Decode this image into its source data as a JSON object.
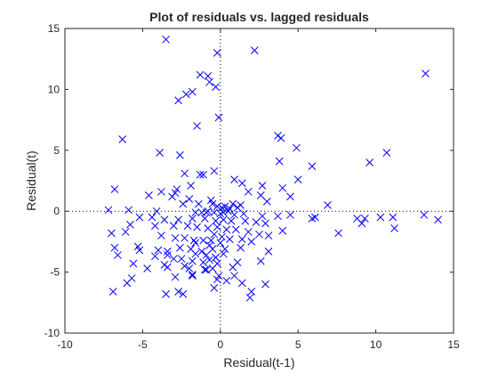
{
  "chart_data": {
    "type": "scatter",
    "title": "Plot of residuals vs. lagged residuals",
    "xlabel": "Residual(t-1)",
    "ylabel": "Residual(t)",
    "xlim": [
      -10,
      15
    ],
    "ylim": [
      -10,
      15
    ],
    "xticks": [
      "-10",
      "-5",
      "0",
      "5",
      "10",
      "15"
    ],
    "yticks": [
      "-10",
      "-5",
      "0",
      "5",
      "10",
      "15"
    ],
    "grid": false,
    "reference_lines": [
      "x = 0",
      "y = 0"
    ],
    "marker": "x",
    "marker_color": "#0000ff",
    "series": [
      {
        "x": [
          -3.5,
          -0.2,
          2.2,
          13.2,
          -1.3,
          -0.8,
          -1.8,
          -2.2,
          -2.7,
          -0.3,
          -0.7,
          -1.5,
          -6.3,
          3.7,
          3.9,
          4.9,
          -2.6,
          -0.1,
          9.6,
          10.7,
          -3.9,
          3.8,
          5.9,
          -1.3,
          -1.1,
          -2.3,
          -0.4,
          -1.9,
          -2.8,
          -3.8,
          -2.9,
          1.4,
          2.7,
          4.5,
          5.0,
          0.9,
          1.8,
          -6.8,
          4.0,
          2.6,
          -4.6,
          -3.1,
          -2.0,
          -0.6,
          3.0,
          -2.4,
          -1.4,
          -0.5,
          -0.2,
          0.1,
          0.3,
          0.6,
          0.8,
          1.1,
          1.3,
          -0.8,
          -7.2,
          -5.9,
          -4.1,
          -1.6,
          -1.2,
          -0.9,
          -0.4,
          0.0,
          0.2,
          0.5,
          0.9,
          1.5,
          2.7,
          3.7,
          4.5,
          6.1,
          6.9,
          8.8,
          9.3,
          10.3,
          11.1,
          13.1,
          14.0,
          -5.2,
          -4.4,
          -3.6,
          -2.7,
          -1.8,
          -1.0,
          -0.3,
          0.2,
          0.7,
          1.6,
          2.3,
          2.9,
          5.9,
          7.6,
          9.1,
          -7.0,
          -5.8,
          -4.2,
          -3.0,
          -2.1,
          -1.5,
          -0.8,
          -0.2,
          0.4,
          1.0,
          1.8,
          2.5,
          3.1,
          4.0,
          11.2,
          -6.1,
          -3.8,
          -2.9,
          -2.3,
          -1.7,
          -1.1,
          -0.6,
          0.1,
          0.6,
          1.4,
          2.0,
          -6.8,
          -5.2,
          -4.0,
          -3.4,
          -2.6,
          -1.9,
          -1.2,
          -0.5,
          0.3,
          1.3,
          3.1,
          -5.3,
          -3.4,
          -2.5,
          -1.6,
          -0.9,
          -0.3,
          -6.6,
          -4.2,
          -3.0,
          -1.8,
          -0.7,
          1.1,
          2.6,
          -5.6,
          -3.6,
          -2.3,
          -1.1,
          -0.2,
          -4.7,
          -3.4,
          -2.0,
          -0.5,
          0.8,
          -5.7,
          -2.9,
          -1.8,
          -0.1,
          0.9,
          -6.0,
          -3.5,
          -2.7,
          -0.4,
          2.0,
          2.9,
          -6.9,
          -1.8,
          -0.2,
          0.4,
          1.4,
          -0.9,
          -0.3,
          0.2,
          -0.7,
          -1.6,
          0.0,
          -0.4,
          1.9,
          -2.4,
          -1.0
        ],
        "y": [
          14.1,
          13.0,
          13.2,
          11.3,
          11.2,
          11.1,
          9.8,
          9.6,
          9.1,
          10.2,
          10.6,
          7.0,
          5.9,
          6.2,
          6.0,
          5.2,
          4.6,
          7.7,
          4.0,
          4.8,
          4.8,
          4.1,
          3.7,
          3.0,
          3.0,
          3.1,
          3.3,
          2.1,
          1.8,
          1.6,
          1.5,
          2.3,
          2.1,
          1.2,
          2.6,
          2.6,
          1.6,
          1.8,
          1.9,
          1.3,
          1.3,
          1.2,
          1.0,
          0.9,
          0.8,
          0.6,
          0.6,
          0.6,
          0.4,
          0.3,
          0.4,
          0.2,
          0.6,
          0.3,
          0.5,
          0.0,
          0.1,
          0.1,
          0.0,
          -0.1,
          -0.1,
          -0.1,
          -0.1,
          -0.2,
          -0.1,
          0.0,
          -0.3,
          -0.2,
          -0.4,
          -0.4,
          -0.3,
          -0.5,
          0.5,
          -0.6,
          -0.6,
          -0.5,
          -0.5,
          -0.3,
          -0.7,
          -0.5,
          -0.5,
          -0.7,
          -0.7,
          -0.6,
          -0.6,
          -0.8,
          -0.7,
          -0.8,
          -0.8,
          -0.9,
          -1.0,
          -0.6,
          -1.8,
          -1.0,
          -1.8,
          -1.1,
          -1.2,
          -1.2,
          -1.2,
          -1.3,
          -1.4,
          -1.3,
          -1.5,
          -1.5,
          -1.7,
          -1.9,
          -2.0,
          -1.6,
          -1.4,
          -1.7,
          -2.0,
          -2.2,
          -2.2,
          -2.4,
          -2.4,
          -2.4,
          -2.1,
          -2.3,
          -2.3,
          -2.5,
          -3.0,
          -3.2,
          -3.2,
          -3.3,
          -3.0,
          -3.1,
          -3.3,
          -3.1,
          -3.1,
          -3.0,
          -3.3,
          -2.9,
          -3.6,
          -3.9,
          -3.5,
          -3.6,
          -3.8,
          -3.6,
          -3.7,
          -3.9,
          -4.1,
          -4.0,
          -4.2,
          -4.1,
          -4.3,
          -4.4,
          -4.5,
          -4.2,
          -4.3,
          -4.7,
          -4.6,
          -4.7,
          -4.7,
          -4.6,
          -5.5,
          -5.4,
          -5.2,
          -5.3,
          -5.3,
          -5.9,
          -6.8,
          -6.6,
          -6.3,
          -6.6,
          -6.0,
          -6.6,
          -5.3,
          -5.6,
          -5.7,
          -5.9,
          -4.8,
          -3.8,
          -3.5,
          -2.8,
          -2.6,
          -2.6,
          -1.9,
          -7.1,
          -6.8,
          -4.8
        ]
      }
    ]
  }
}
